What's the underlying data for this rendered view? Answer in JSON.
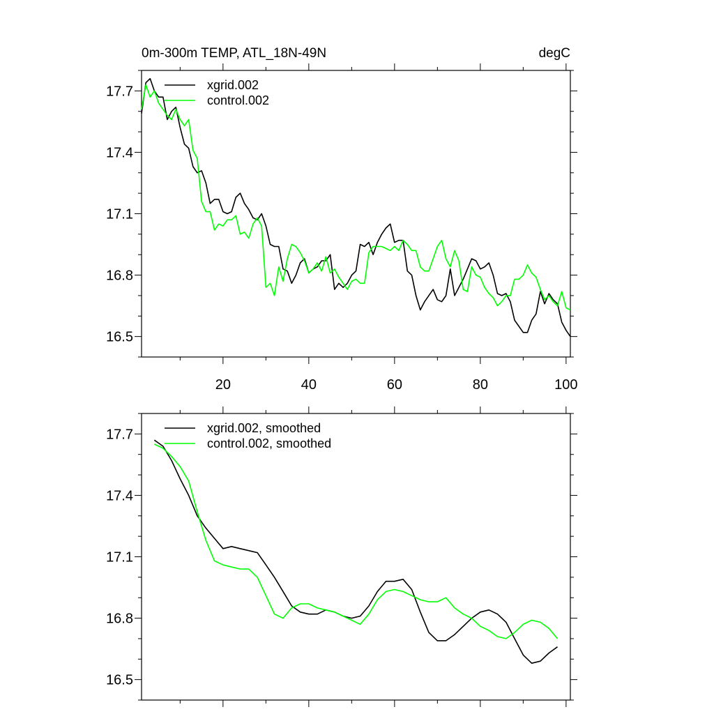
{
  "chart_data": [
    {
      "type": "line",
      "title": "0m-300m TEMP, ATL_18N-49N",
      "units": "degC",
      "xlabel": "",
      "ylabel": "",
      "xlim": [
        1,
        101
      ],
      "ylim": [
        16.4,
        17.8
      ],
      "xticks": [
        20,
        40,
        60,
        80,
        100
      ],
      "xtick_labels": [
        "20",
        "40",
        "60",
        "80",
        "100"
      ],
      "yticks": [
        16.5,
        16.8,
        17.1,
        17.4,
        17.7
      ],
      "ytick_labels": [
        "16.5",
        "16.8",
        "17.1",
        "17.4",
        "17.7"
      ],
      "legend_position": "top-left",
      "series": [
        {
          "name": "xgrid.002",
          "color": "#000000",
          "x": [
            1,
            2,
            3,
            4,
            5,
            6,
            7,
            8,
            9,
            10,
            11,
            12,
            13,
            14,
            15,
            16,
            17,
            18,
            19,
            20,
            21,
            22,
            23,
            24,
            25,
            26,
            27,
            28,
            29,
            30,
            31,
            32,
            33,
            34,
            35,
            36,
            37,
            38,
            39,
            40,
            41,
            42,
            43,
            44,
            45,
            46,
            47,
            48,
            49,
            50,
            51,
            52,
            53,
            54,
            55,
            56,
            57,
            58,
            59,
            60,
            61,
            62,
            63,
            64,
            65,
            66,
            67,
            68,
            69,
            70,
            71,
            72,
            73,
            74,
            75,
            76,
            77,
            78,
            79,
            80,
            81,
            82,
            83,
            84,
            85,
            86,
            87,
            88,
            89,
            90,
            91,
            92,
            93,
            94,
            95,
            96,
            97,
            98,
            99,
            100,
            101
          ],
          "values": [
            17.59,
            17.74,
            17.76,
            17.7,
            17.67,
            17.67,
            17.56,
            17.6,
            17.62,
            17.52,
            17.44,
            17.42,
            17.33,
            17.3,
            17.31,
            17.25,
            17.15,
            17.17,
            17.17,
            17.11,
            17.1,
            17.11,
            17.18,
            17.2,
            17.15,
            17.12,
            17.08,
            17.07,
            17.1,
            17.04,
            16.95,
            16.94,
            16.94,
            16.83,
            16.82,
            16.76,
            16.8,
            16.86,
            16.88,
            16.81,
            16.83,
            16.84,
            16.87,
            16.87,
            16.9,
            16.73,
            16.76,
            16.74,
            16.76,
            16.8,
            16.82,
            16.95,
            16.94,
            16.96,
            16.9,
            16.96,
            17.0,
            17.03,
            17.05,
            16.96,
            16.97,
            16.97,
            16.82,
            16.8,
            16.7,
            16.63,
            16.67,
            16.7,
            16.73,
            16.68,
            16.67,
            16.7,
            16.83,
            16.7,
            16.74,
            16.78,
            16.83,
            16.88,
            16.87,
            16.83,
            16.84,
            16.86,
            16.8,
            16.71,
            16.7,
            16.71,
            16.67,
            16.58,
            16.55,
            16.52,
            16.52,
            16.58,
            16.61,
            16.72,
            16.66,
            16.71,
            16.68,
            16.66,
            16.57,
            16.53,
            16.5
          ]
        },
        {
          "name": "control.002",
          "color": "#00ff00",
          "x": [
            1,
            2,
            3,
            4,
            5,
            6,
            7,
            8,
            9,
            10,
            11,
            12,
            13,
            14,
            15,
            16,
            17,
            18,
            19,
            20,
            21,
            22,
            23,
            24,
            25,
            26,
            27,
            28,
            29,
            30,
            31,
            32,
            33,
            34,
            35,
            36,
            37,
            38,
            39,
            40,
            41,
            42,
            43,
            44,
            45,
            46,
            47,
            48,
            49,
            50,
            51,
            52,
            53,
            54,
            55,
            56,
            57,
            58,
            59,
            60,
            61,
            62,
            63,
            64,
            65,
            66,
            67,
            68,
            69,
            70,
            71,
            72,
            73,
            74,
            75,
            76,
            77,
            78,
            79,
            80,
            81,
            82,
            83,
            84,
            85,
            86,
            87,
            88,
            89,
            90,
            91,
            92,
            93,
            94,
            95,
            96,
            97,
            98,
            99,
            100,
            101
          ],
          "values": [
            17.61,
            17.73,
            17.67,
            17.7,
            17.64,
            17.61,
            17.58,
            17.56,
            17.61,
            17.56,
            17.53,
            17.56,
            17.41,
            17.37,
            17.16,
            17.11,
            17.11,
            17.02,
            17.05,
            17.04,
            17.07,
            17.07,
            17.09,
            17.0,
            17.01,
            16.98,
            17.05,
            17.08,
            17.04,
            16.74,
            16.76,
            16.7,
            16.84,
            16.77,
            16.88,
            16.95,
            16.94,
            16.91,
            16.87,
            16.81,
            16.83,
            16.86,
            16.82,
            16.89,
            16.81,
            16.83,
            16.79,
            16.76,
            16.73,
            16.77,
            16.78,
            16.76,
            16.76,
            16.91,
            16.94,
            16.94,
            16.94,
            16.93,
            16.92,
            16.94,
            16.92,
            16.97,
            16.95,
            16.92,
            16.92,
            16.84,
            16.82,
            16.82,
            16.88,
            16.94,
            16.97,
            16.88,
            16.84,
            16.92,
            16.87,
            16.73,
            16.72,
            16.84,
            16.8,
            16.79,
            16.74,
            16.71,
            16.69,
            16.65,
            16.67,
            16.7,
            16.7,
            16.78,
            16.78,
            16.8,
            16.85,
            16.81,
            16.79,
            16.73,
            16.68,
            16.7,
            16.67,
            16.65,
            16.72,
            16.64,
            16.63
          ]
        }
      ]
    },
    {
      "type": "line",
      "title": "",
      "xlabel": "",
      "ylabel": "",
      "xlim": [
        1,
        101
      ],
      "ylim": [
        16.4,
        17.8
      ],
      "xticks": [
        20,
        40,
        60,
        80,
        100
      ],
      "xtick_labels": [],
      "yticks": [
        16.5,
        16.8,
        17.1,
        17.4,
        17.7
      ],
      "ytick_labels": [
        "16.5",
        "16.8",
        "17.1",
        "17.4",
        "17.7"
      ],
      "legend_position": "top-left",
      "series": [
        {
          "name": "xgrid.002, smoothed",
          "color": "#000000",
          "x": [
            4,
            6,
            8,
            10,
            12,
            14,
            16,
            18,
            20,
            22,
            24,
            26,
            28,
            30,
            32,
            34,
            36,
            38,
            40,
            42,
            44,
            46,
            48,
            50,
            52,
            54,
            56,
            58,
            60,
            62,
            64,
            66,
            68,
            70,
            72,
            74,
            76,
            78,
            80,
            82,
            84,
            86,
            88,
            90,
            92,
            94,
            96,
            98
          ],
          "values": [
            17.67,
            17.64,
            17.57,
            17.48,
            17.4,
            17.3,
            17.24,
            17.19,
            17.14,
            17.15,
            17.14,
            17.13,
            17.12,
            17.06,
            17.0,
            16.93,
            16.86,
            16.83,
            16.82,
            16.82,
            16.84,
            16.83,
            16.81,
            16.8,
            16.81,
            16.86,
            16.93,
            16.98,
            16.98,
            16.99,
            16.94,
            16.83,
            16.73,
            16.69,
            16.69,
            16.72,
            16.76,
            16.8,
            16.83,
            16.84,
            16.82,
            16.78,
            16.7,
            16.62,
            16.58,
            16.59,
            16.63,
            16.66
          ]
        },
        {
          "name": "control.002, smoothed",
          "color": "#00ff00",
          "x": [
            4,
            6,
            8,
            10,
            12,
            14,
            16,
            18,
            20,
            22,
            24,
            26,
            28,
            30,
            32,
            34,
            36,
            38,
            40,
            42,
            44,
            46,
            48,
            50,
            52,
            54,
            56,
            58,
            60,
            62,
            64,
            66,
            68,
            70,
            72,
            74,
            76,
            78,
            80,
            82,
            84,
            86,
            88,
            90,
            92,
            94,
            96,
            98
          ],
          "values": [
            17.65,
            17.63,
            17.59,
            17.54,
            17.47,
            17.32,
            17.18,
            17.08,
            17.06,
            17.05,
            17.04,
            17.04,
            17.0,
            16.91,
            16.82,
            16.8,
            16.85,
            16.87,
            16.87,
            16.85,
            16.84,
            16.83,
            16.81,
            16.79,
            16.77,
            16.82,
            16.89,
            16.93,
            16.94,
            16.93,
            16.91,
            16.89,
            16.88,
            16.88,
            16.9,
            16.85,
            16.82,
            16.8,
            16.76,
            16.74,
            16.71,
            16.7,
            16.73,
            16.77,
            16.79,
            16.78,
            16.75,
            16.7
          ]
        }
      ]
    }
  ]
}
